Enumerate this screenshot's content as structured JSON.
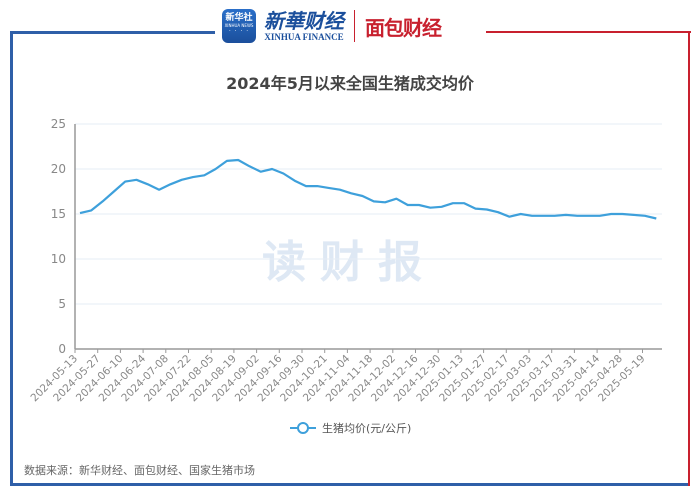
{
  "header": {
    "xinhua_badge_text": "新华社",
    "xinhua_badge_sub": "XINHUA NEWS",
    "xinhua_badge_dots": "· · · ·",
    "xinhua_finance_cn": "新華财经",
    "xinhua_finance_en": "XINHUA FINANCE",
    "mianbao_brand": "面包财经"
  },
  "colors": {
    "line": "#3ea0db",
    "frame_blue": "#2f5fa8",
    "frame_red": "#c8202e",
    "grid": "#e6edf5",
    "axis": "#999999",
    "tick_text": "#888888"
  },
  "watermark": "读财报",
  "source": "数据来源：新华财经、面包财经、国家生猪市场",
  "chart_data": {
    "type": "line",
    "title": "2024年5月以来全国生猪成交均价",
    "xlabel": "",
    "ylabel": "",
    "ylim": [
      0,
      25
    ],
    "yticks": [
      0,
      5,
      10,
      15,
      20,
      25
    ],
    "grid": true,
    "legend_position": "bottom",
    "x_tick_labels": [
      "2024-05-13",
      "2024-05-27",
      "2024-06-10",
      "2024-06-24",
      "2024-07-08",
      "2024-07-22",
      "2024-08-05",
      "2024-08-19",
      "2024-09-02",
      "2024-09-16",
      "2024-09-30",
      "2024-10-21",
      "2024-11-04",
      "2024-11-18",
      "2024-12-02",
      "2024-12-16",
      "2024-12-30",
      "2025-01-13",
      "2025-01-27",
      "2025-02-17",
      "2025-03-03",
      "2025-03-17",
      "2025-03-31",
      "2025-04-14",
      "2025-04-28",
      "2025-05-19"
    ],
    "series": [
      {
        "name": "生猪均价(元/公斤)",
        "values": [
          15.1,
          15.4,
          16.4,
          17.5,
          18.6,
          18.8,
          18.3,
          17.7,
          18.3,
          18.8,
          19.1,
          19.3,
          20.0,
          20.9,
          21.0,
          20.3,
          19.7,
          20.0,
          19.5,
          18.7,
          18.1,
          18.1,
          17.9,
          17.7,
          17.3,
          17.0,
          16.4,
          16.3,
          16.7,
          16.0,
          16.0,
          15.7,
          15.8,
          16.2,
          16.2,
          15.6,
          15.5,
          15.2,
          14.7,
          15.0,
          14.8,
          14.8,
          14.8,
          14.9,
          14.8,
          14.8,
          14.8,
          15.0,
          15.0,
          14.9,
          14.8,
          14.5
        ]
      }
    ]
  }
}
